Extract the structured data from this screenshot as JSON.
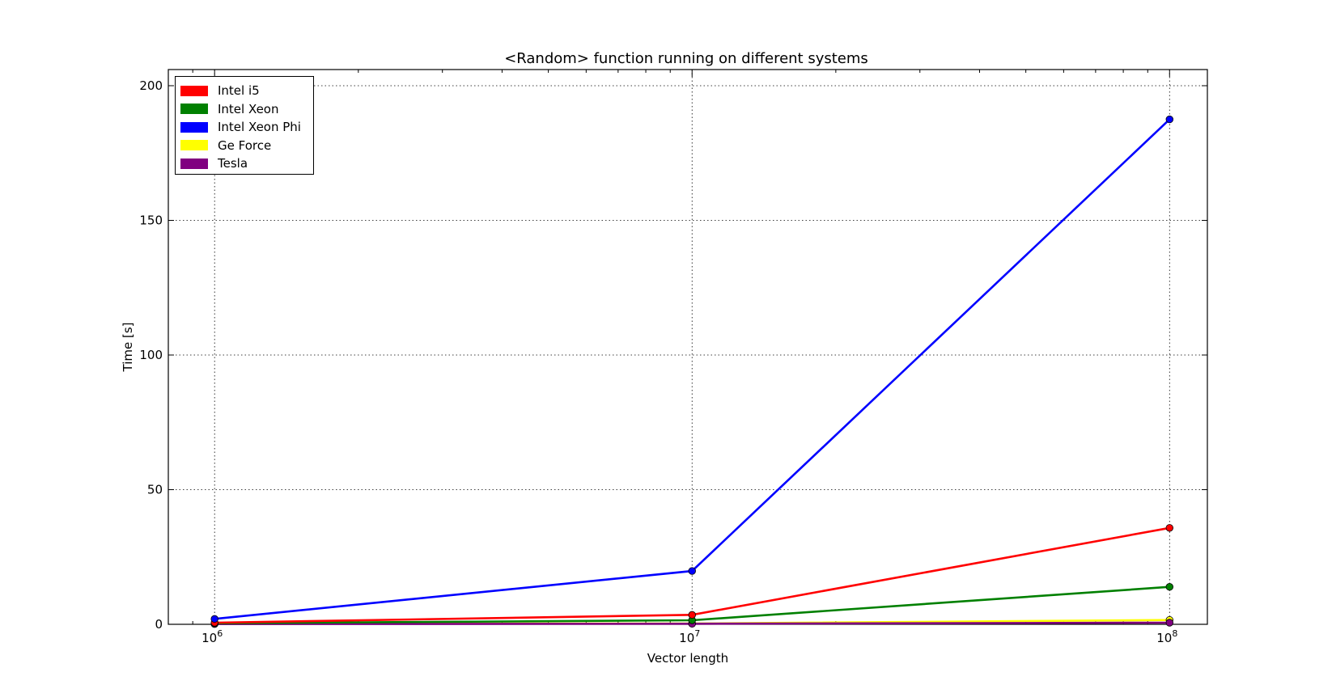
{
  "chart_data": {
    "type": "line",
    "title": "<Random> function running on different systems",
    "xlabel": "Vector length",
    "ylabel": "Time [s]",
    "xscale": "log",
    "x": [
      1000000,
      10000000,
      100000000
    ],
    "xlim": [
      800000,
      120000000
    ],
    "ylim": [
      0,
      206
    ],
    "xticks": [
      {
        "value": 1000000,
        "base": "10",
        "exp": "6"
      },
      {
        "value": 10000000,
        "base": "10",
        "exp": "7"
      },
      {
        "value": 100000000,
        "base": "10",
        "exp": "8"
      }
    ],
    "yticks": [
      0,
      50,
      100,
      150,
      200
    ],
    "grid": true,
    "legend_position": "top-left",
    "series": [
      {
        "name": "Intel i5",
        "color": "#ff0000",
        "values": [
          0.6,
          3.5,
          35.8
        ]
      },
      {
        "name": "Intel Xeon",
        "color": "#008000",
        "values": [
          0.4,
          1.5,
          13.9
        ]
      },
      {
        "name": "Intel Xeon Phi",
        "color": "#0000ff",
        "values": [
          2.0,
          19.8,
          187.5
        ]
      },
      {
        "name": "Ge Force",
        "color": "#ffff00",
        "values": [
          0.2,
          0.3,
          1.6
        ]
      },
      {
        "name": "Tesla",
        "color": "#800080",
        "values": [
          0.1,
          0.2,
          0.6
        ]
      }
    ]
  }
}
